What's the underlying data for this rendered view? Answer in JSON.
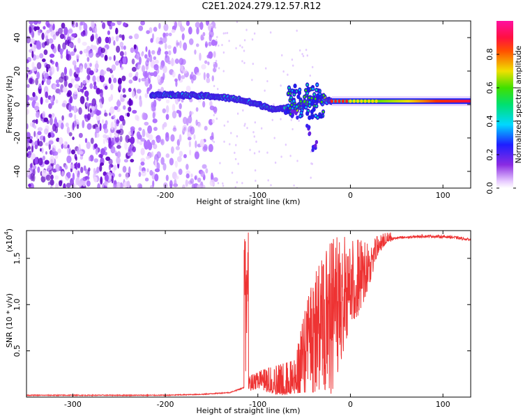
{
  "title": "C2E1.2024.279.12.57.R12",
  "chart_data": [
    {
      "type": "heatmap",
      "xlabel": "Height of straight line (km)",
      "ylabel": "Frequency (Hz)",
      "xlim": [
        -350,
        130
      ],
      "ylim": [
        -50,
        50
      ],
      "xticks": [
        -300,
        -200,
        -100,
        0,
        100
      ],
      "yticks": [
        -40,
        -20,
        0,
        20,
        40
      ],
      "xtick_labels": [
        "-300",
        "-200",
        "-100",
        "0",
        "100"
      ],
      "ytick_labels": [
        "-40",
        "-20",
        "0",
        "20",
        "40"
      ],
      "colorbar": {
        "label": "Normalized spectral amplitude",
        "range": [
          0,
          1
        ],
        "ticks": [
          0.0,
          0.2,
          0.4,
          0.6,
          0.8
        ],
        "tick_labels": [
          "0.0",
          "0.2",
          "0.4",
          "0.6",
          "0.8"
        ],
        "colormap": "rainbow (white-violet-blue-cyan-green-yellow-red-magenta)"
      },
      "features": {
        "noise_region_x": [
          -350,
          -150
        ],
        "noise_dominant_color": "#7a1fe0",
        "signal_track": [
          {
            "x": -215,
            "y": 6
          },
          {
            "x": -150,
            "y": 5
          },
          {
            "x": -120,
            "y": 3
          },
          {
            "x": -100,
            "y": 0
          },
          {
            "x": -80,
            "y": -3
          },
          {
            "x": -60,
            "y": -2
          },
          {
            "x": -40,
            "y": 3
          },
          {
            "x": -20,
            "y": 2
          },
          {
            "x": 0,
            "y": 2
          },
          {
            "x": 50,
            "y": 2
          },
          {
            "x": 130,
            "y": 2
          }
        ],
        "branch_track": [
          {
            "x": -60,
            "y": -5
          },
          {
            "x": -45,
            "y": -15
          },
          {
            "x": -38,
            "y": -25
          }
        ]
      }
    },
    {
      "type": "line",
      "xlabel": "Height of straight line (km)",
      "ylabel": "SNR (10 * v/v)",
      "y_multiplier": "(x10",
      "y_multiplier_exp": "4",
      "y_multiplier_close": ")",
      "xlim": [
        -350,
        130
      ],
      "ylim": [
        0,
        1.8
      ],
      "xticks": [
        -300,
        -200,
        -100,
        0,
        100
      ],
      "yticks": [
        0.5,
        1.0,
        1.5
      ],
      "xtick_labels": [
        "-300",
        "-200",
        "-100",
        "0",
        "100"
      ],
      "ytick_labels": [
        "0.5",
        "1.0",
        "1.5"
      ],
      "series": [
        {
          "color": "#ee3333",
          "baseline_points": [
            [
              -350,
              0.02
            ],
            [
              -200,
              0.02
            ],
            [
              -160,
              0.03
            ],
            [
              -130,
              0.05
            ],
            [
              -110,
              0.12
            ],
            [
              -100,
              0.2
            ],
            [
              -90,
              0.15
            ],
            [
              -80,
              0.06
            ],
            [
              -70,
              0.05
            ],
            [
              -60,
              0.15
            ],
            [
              -50,
              0.45
            ],
            [
              -40,
              0.8
            ],
            [
              -30,
              0.9
            ],
            [
              -20,
              1.0
            ],
            [
              -10,
              1.05
            ],
            [
              0,
              1.15
            ],
            [
              10,
              1.2
            ],
            [
              20,
              1.4
            ],
            [
              30,
              1.6
            ],
            [
              40,
              1.7
            ],
            [
              50,
              1.72
            ],
            [
              80,
              1.74
            ],
            [
              110,
              1.73
            ],
            [
              130,
              1.7
            ]
          ],
          "peak_points": [
            [
              -110,
              0.22
            ],
            [
              -100,
              0.28
            ],
            [
              -60,
              0.4
            ],
            [
              -50,
              0.9
            ],
            [
              -40,
              1.3
            ],
            [
              -30,
              1.5
            ],
            [
              -20,
              1.7
            ],
            [
              -10,
              1.75
            ],
            [
              0,
              1.7
            ],
            [
              10,
              1.7
            ],
            [
              20,
              1.65
            ],
            [
              30,
              1.75
            ],
            [
              40,
              1.78
            ]
          ],
          "trough_points": [
            [
              -110,
              0.06
            ],
            [
              -100,
              0.1
            ],
            [
              -80,
              0.02
            ],
            [
              -60,
              0.04
            ],
            [
              -50,
              0.05
            ],
            [
              -40,
              0.05
            ],
            [
              -30,
              0.1
            ],
            [
              -20,
              0.03
            ],
            [
              -10,
              0.4
            ],
            [
              0,
              0.8
            ],
            [
              10,
              0.9
            ],
            [
              20,
              1.2
            ],
            [
              30,
              1.55
            ],
            [
              40,
              1.68
            ]
          ]
        }
      ]
    }
  ]
}
